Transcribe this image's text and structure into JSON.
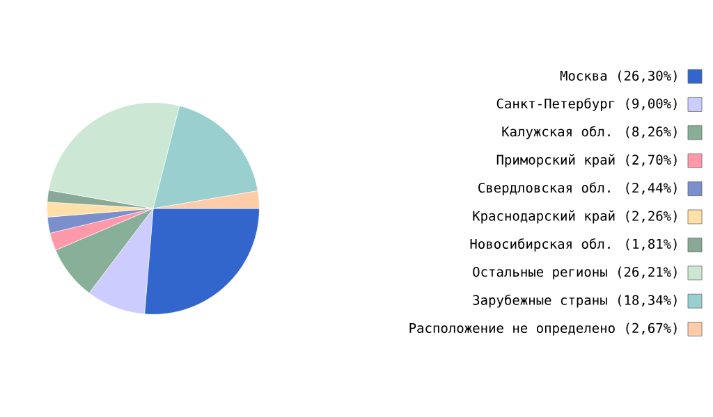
{
  "chart_data": {
    "type": "pie",
    "legend": "right",
    "categories": [
      "Москва (26,30%)",
      "Санкт-Петербург (9,00%)",
      "Калужская обл. (8,26%)",
      "Приморский край (2,70%)",
      "Свердловская обл. (2,44%)",
      "Краснодарский край (2,26%)",
      "Новосибирская обл. (1,81%)",
      "Остальные регионы (26,21%)",
      "Зарубежные страны (18,34%)",
      "Расположение не определено (2,67%)"
    ],
    "values": [
      26.3,
      9.0,
      8.26,
      2.7,
      2.44,
      2.26,
      1.81,
      26.21,
      18.34,
      2.67
    ],
    "colors": [
      "#3366cc",
      "#ccccff",
      "#88b098",
      "#ff99aa",
      "#7b8fcc",
      "#ffe0a8",
      "#8aa898",
      "#cce8d4",
      "#99cfcf",
      "#ffccaa"
    ]
  }
}
